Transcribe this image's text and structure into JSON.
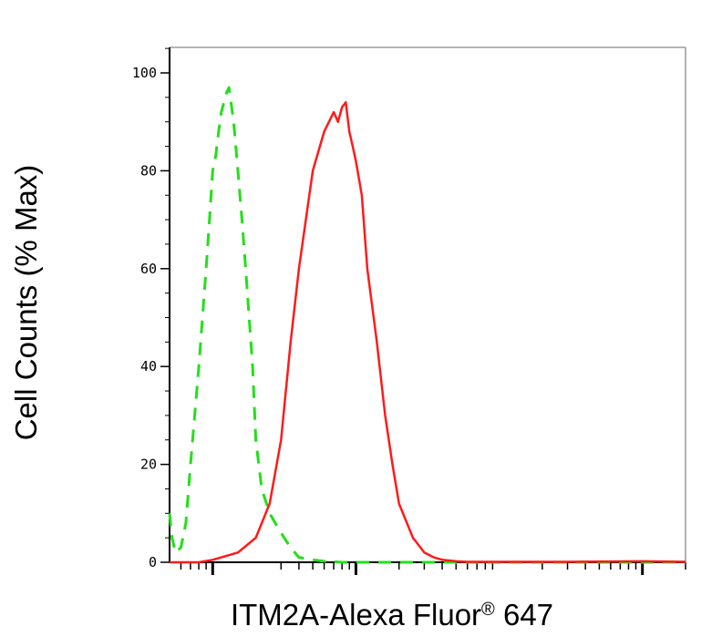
{
  "chart_data": {
    "type": "line",
    "title": "",
    "xlabel": "ITM2A-Alexa Fluor",
    "xlabel_mark": "®",
    "xlabel_suffix": " 647",
    "ylabel": "Cell Counts (% Max)",
    "x_scale": "log",
    "xlim": [
      0.5,
      2000
    ],
    "ylim": [
      0,
      100
    ],
    "y_ticks": [
      0,
      20,
      40,
      60,
      80,
      100
    ],
    "y_tick_labels": [
      "0",
      "20",
      "40",
      "60",
      "80",
      "100"
    ],
    "x_major_ticks": [
      1,
      10,
      1000
    ],
    "x_minor_ticks": [
      0.6,
      0.7,
      0.8,
      0.9,
      3,
      4,
      5,
      6,
      7,
      8,
      9,
      20,
      30,
      40,
      50,
      60,
      70,
      80,
      90,
      200,
      300,
      400,
      500,
      600,
      700,
      800,
      900,
      2000
    ],
    "grid": false,
    "legend": "none",
    "series": [
      {
        "style": "dashed",
        "color": "#22e01a",
        "x": [
          0.5,
          0.52,
          0.55,
          0.6,
          0.65,
          0.7,
          0.8,
          0.9,
          0.95,
          1.0,
          1.05,
          1.1,
          1.15,
          1.2,
          1.25,
          1.3,
          1.4,
          1.5,
          1.6,
          1.7,
          1.9,
          2.0,
          2.2,
          2.5,
          3.0,
          3.5,
          4.0,
          5.0,
          6.0,
          7.0,
          8.0,
          10,
          20,
          50,
          100,
          300,
          1000,
          2000
        ],
        "y": [
          10,
          5,
          2,
          3,
          8,
          20,
          40,
          60,
          70,
          80,
          83,
          88,
          92,
          94,
          96,
          97,
          90,
          80,
          70,
          60,
          40,
          25,
          15,
          10,
          6,
          3,
          1,
          0.5,
          0.2,
          0.1,
          0,
          0,
          0,
          0,
          0,
          0,
          0,
          0
        ]
      },
      {
        "style": "solid",
        "color": "#ff1a1a",
        "x": [
          0.5,
          0.8,
          1.0,
          1.5,
          2.0,
          2.5,
          3.0,
          3.5,
          4.0,
          5.0,
          6.0,
          7.0,
          7.5,
          8.0,
          8.5,
          9.0,
          9.5,
          10,
          11,
          12,
          14,
          16,
          18,
          20,
          25,
          30,
          35,
          40,
          50,
          60,
          100,
          300,
          1000,
          2000
        ],
        "y": [
          0,
          0,
          0.5,
          2,
          5,
          12,
          25,
          45,
          60,
          80,
          88,
          92,
          90,
          93,
          94,
          88,
          85,
          82,
          75,
          60,
          45,
          30,
          20,
          12,
          5,
          2,
          1,
          0.5,
          0.2,
          0.1,
          0.1,
          0.1,
          0.2,
          0.1
        ]
      }
    ]
  }
}
